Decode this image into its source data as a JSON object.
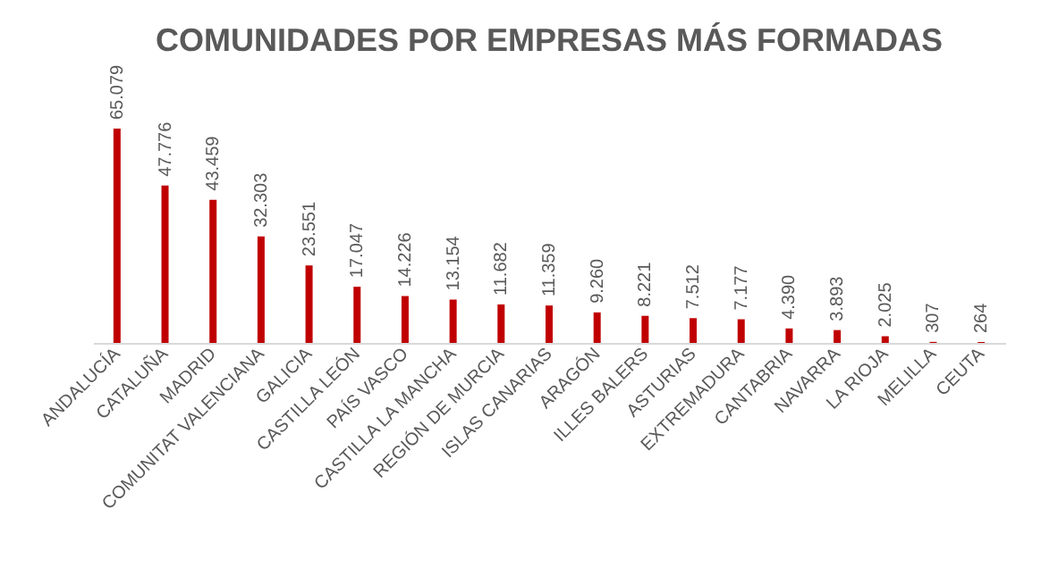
{
  "chart_data": {
    "type": "bar",
    "title": "COMUNIDADES POR EMPRESAS MÁS FORMADAS",
    "categories": [
      "ANDALUCÍA",
      "CATALUÑA",
      "MADRID",
      "COMUNITAT VALENCIANA",
      "GALICIA",
      "CASTILLA LEÓN",
      "PAÍS VASCO",
      "CASTILLA LA MANCHA",
      "REGIÓN DE MURCIA",
      "ISLAS CANARIAS",
      "ARAGÓN",
      "ILLES BALERS",
      "ASTURIAS",
      "EXTREMADURA",
      "CANTABRIA",
      "NAVARRA",
      "LA RIOJA",
      "MELILLA",
      "CEUTA"
    ],
    "values": [
      65079,
      47776,
      43459,
      32303,
      23551,
      17047,
      14226,
      13154,
      11682,
      11359,
      9260,
      8221,
      7512,
      7177,
      4390,
      3893,
      2025,
      307,
      264
    ],
    "value_labels": [
      "65.079",
      "47.776",
      "43.459",
      "32.303",
      "23.551",
      "17.047",
      "14.226",
      "13.154",
      "11.682",
      "11.359",
      "9.260",
      "8.221",
      "7.512",
      "7.177",
      "4.390",
      "3.893",
      "2.025",
      "307",
      "264"
    ],
    "color": "#c00000"
  }
}
